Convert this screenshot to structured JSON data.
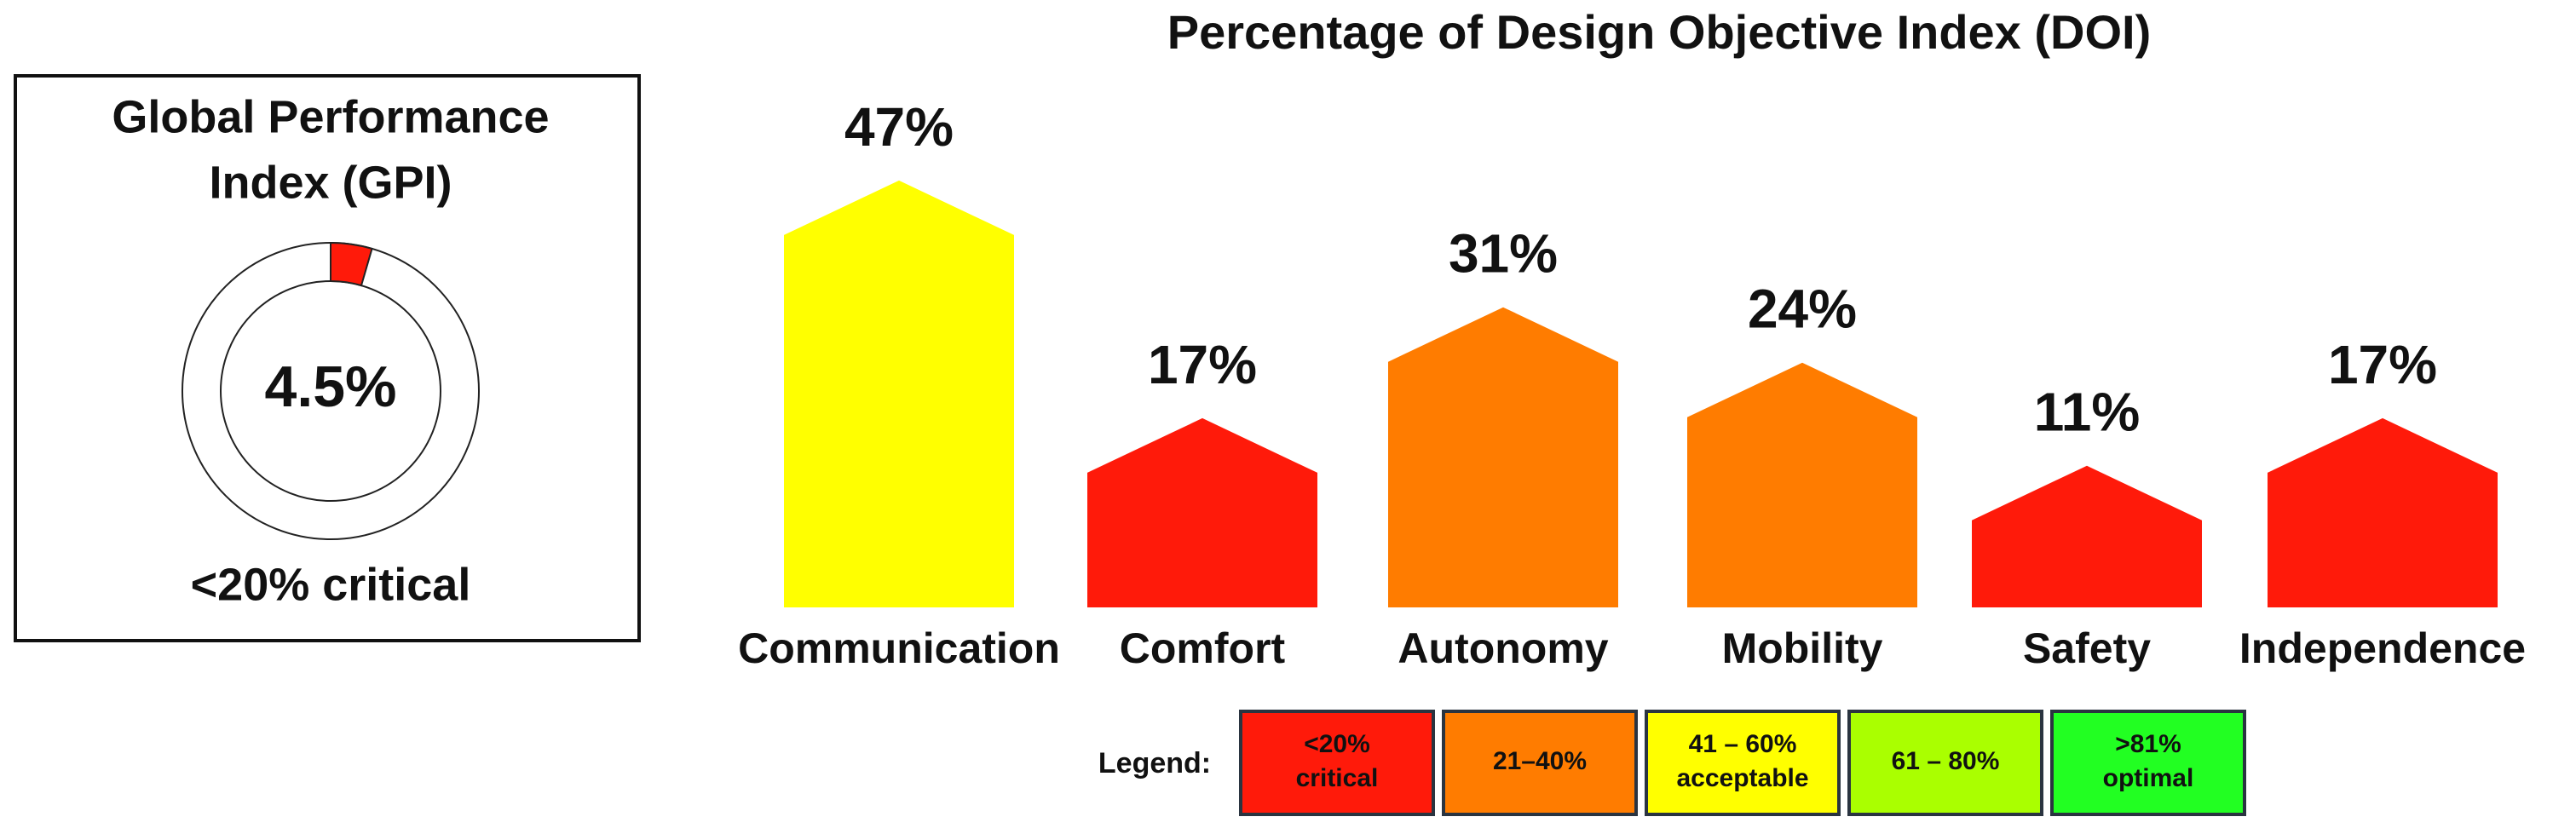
{
  "chart_data": [
    {
      "type": "donut",
      "title": [
        "Global Performance",
        "Index (GPI)"
      ],
      "value": 4.5,
      "value_label": "4.5%",
      "ylim": [
        0,
        100
      ],
      "color": "#ff1a0a",
      "caption": "<20% critical"
    },
    {
      "type": "bar",
      "title": "Percentage of Design Objective Index (DOI)",
      "categories": [
        "Communication",
        "Comfort",
        "Autonomy",
        "Mobility",
        "Safety",
        "Independence"
      ],
      "values": [
        47,
        17,
        31,
        24,
        11,
        17
      ],
      "value_labels": [
        "47%",
        "17%",
        "31%",
        "24%",
        "11%",
        "17%"
      ],
      "colors": [
        "#ffff00",
        "#ff1a0a",
        "#ff7c00",
        "#ff7c00",
        "#ff1a0a",
        "#ff1a0a"
      ],
      "legend": {
        "title": "Legend:",
        "items": [
          {
            "label": [
              "<20%",
              "critical"
            ],
            "color": "#ff1a0a"
          },
          {
            "label": [
              "21–40%"
            ],
            "color": "#ff7c00"
          },
          {
            "label": [
              "41 – 60%",
              "acceptable"
            ],
            "color": "#ffff00"
          },
          {
            "label": [
              "61 – 80%"
            ],
            "color": "#aaff00"
          },
          {
            "label": [
              ">81%",
              "optimal"
            ],
            "color": "#22ff22"
          }
        ]
      }
    }
  ]
}
